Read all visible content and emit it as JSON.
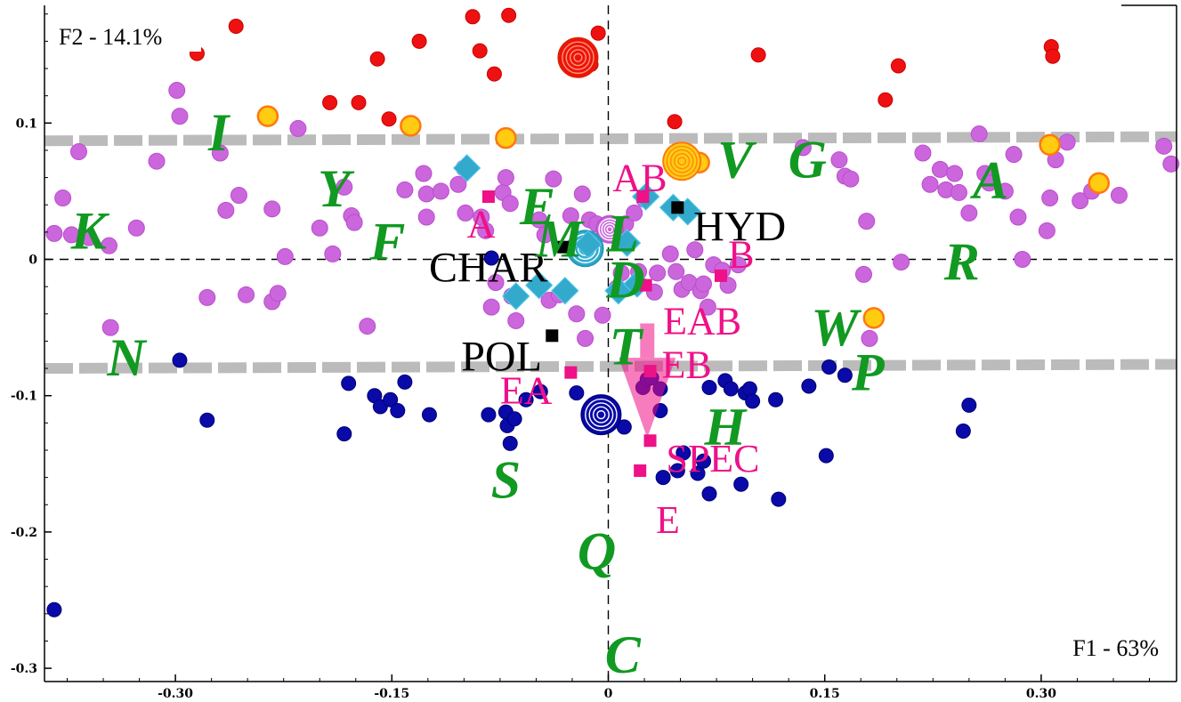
{
  "axes": {
    "x_title": "F1 - 63%",
    "y_title": "F2 - 14.1%",
    "x_ticks": [
      {
        "v": -0.3,
        "label": "-0.30"
      },
      {
        "v": -0.15,
        "label": "-0.15"
      },
      {
        "v": 0,
        "label": "0"
      },
      {
        "v": 0.15,
        "label": "0.15"
      },
      {
        "v": 0.3,
        "label": "0.30"
      }
    ],
    "y_ticks": [
      {
        "v": 0.1,
        "label": "0.1"
      },
      {
        "v": 0,
        "label": "0"
      },
      {
        "v": -0.1,
        "label": "-0.1"
      },
      {
        "v": -0.2,
        "label": "-0.2"
      },
      {
        "v": -0.3,
        "label": "-0.3"
      }
    ]
  },
  "chart_data": {
    "type": "scatter",
    "xlabel": "F1 - 63%",
    "ylabel": "F2 - 14.1%",
    "xlim": [
      -0.395,
      0.395
    ],
    "ylim": [
      -0.315,
      0.19
    ],
    "grid": false,
    "colors": {
      "red": "#ee1111",
      "violet": "#cc66dd",
      "blue": "#0a0aa8",
      "yellow": "#ffcc11",
      "yellow_stroke": "#ff7711",
      "cyan": "#33aacc",
      "pink": "#ee1188",
      "green": "#119922",
      "gray": "#bbbbbb",
      "black": "#000000"
    },
    "reference_lines": [
      {
        "x1": -0.395,
        "y1": 0.087,
        "x2": 0.395,
        "y2": 0.09
      },
      {
        "x1": -0.395,
        "y1": -0.08,
        "x2": 0.395,
        "y2": -0.077
      }
    ],
    "series": [
      {
        "key": "red",
        "points": [
          [
            -0.285,
            0.151
          ],
          [
            -0.258,
            0.171
          ],
          [
            -0.193,
            0.115
          ],
          [
            -0.173,
            0.115
          ],
          [
            -0.16,
            0.147
          ],
          [
            -0.152,
            0.103
          ],
          [
            -0.131,
            0.16
          ],
          [
            -0.094,
            0.178
          ],
          [
            -0.089,
            0.153
          ],
          [
            -0.079,
            0.136
          ],
          [
            -0.069,
            0.179
          ],
          [
            -0.025,
            0.145
          ],
          [
            -0.012,
            0.143
          ],
          [
            -0.007,
            0.166
          ],
          [
            0.046,
            0.101
          ],
          [
            0.104,
            0.15
          ],
          [
            0.192,
            0.117
          ],
          [
            0.201,
            0.142
          ],
          [
            0.307,
            0.156
          ],
          [
            0.308,
            0.149
          ]
        ]
      },
      {
        "key": "violet",
        "points": [
          [
            -0.384,
            0.019
          ],
          [
            -0.378,
            0.045
          ],
          [
            -0.372,
            0.018
          ],
          [
            -0.367,
            0.079
          ],
          [
            -0.36,
            0.016
          ],
          [
            -0.346,
            0.01
          ],
          [
            -0.345,
            -0.05
          ],
          [
            -0.327,
            0.023
          ],
          [
            -0.313,
            0.072
          ],
          [
            -0.299,
            0.124
          ],
          [
            -0.297,
            0.105
          ],
          [
            -0.278,
            -0.028
          ],
          [
            -0.269,
            0.078
          ],
          [
            -0.265,
            0.036
          ],
          [
            -0.256,
            0.047
          ],
          [
            -0.251,
            -0.026
          ],
          [
            -0.233,
            0.037
          ],
          [
            -0.233,
            -0.031
          ],
          [
            -0.229,
            -0.025
          ],
          [
            -0.224,
            0.002
          ],
          [
            -0.215,
            0.096
          ],
          [
            -0.2,
            0.023
          ],
          [
            -0.191,
            0.004
          ],
          [
            -0.183,
            0.053
          ],
          [
            -0.178,
            0.032
          ],
          [
            -0.176,
            0.027
          ],
          [
            -0.167,
            -0.049
          ],
          [
            -0.141,
            0.051
          ],
          [
            -0.128,
            0.063
          ],
          [
            -0.126,
            0.048
          ],
          [
            -0.126,
            0.031
          ],
          [
            -0.116,
            0.05
          ],
          [
            -0.104,
            0.055
          ],
          [
            -0.1,
            0.067
          ],
          [
            -0.099,
            0.034
          ],
          [
            -0.088,
            0.031
          ],
          [
            -0.085,
            0.021
          ],
          [
            -0.081,
            -0.035
          ],
          [
            -0.078,
            -0.017
          ],
          [
            -0.073,
            0.049
          ],
          [
            -0.071,
            0.06
          ],
          [
            -0.068,
            0.041
          ],
          [
            -0.067,
            -0.027
          ],
          [
            -0.064,
            -0.045
          ],
          [
            -0.048,
            0.029
          ],
          [
            -0.044,
            0.018
          ],
          [
            -0.041,
            -0.03
          ],
          [
            -0.038,
            0.059
          ],
          [
            -0.034,
            -0.026
          ],
          [
            -0.026,
            0.032
          ],
          [
            -0.022,
            -0.04
          ],
          [
            -0.018,
            0.048
          ],
          [
            -0.016,
            -0.058
          ],
          [
            -0.013,
            0.029
          ],
          [
            -0.008,
            0.026
          ],
          [
            -0.004,
            -0.041
          ],
          [
            0.006,
            -0.021
          ],
          [
            0.009,
            -0.01
          ],
          [
            0.012,
            0.026
          ],
          [
            0.018,
            0.034
          ],
          [
            0.021,
            -0.009
          ],
          [
            0.025,
            0.044
          ],
          [
            0.032,
            -0.024
          ],
          [
            0.034,
            -0.01
          ],
          [
            0.043,
            0.004
          ],
          [
            0.047,
            -0.009
          ],
          [
            0.051,
            -0.022
          ],
          [
            0.056,
            -0.017
          ],
          [
            0.06,
            0.007
          ],
          [
            0.064,
            -0.023
          ],
          [
            0.066,
            -0.018
          ],
          [
            0.069,
            -0.035
          ],
          [
            0.073,
            -0.004
          ],
          [
            0.079,
            -0.008
          ],
          [
            0.083,
            -0.019
          ],
          [
            0.09,
            -0.004
          ],
          [
            0.135,
            0.082
          ],
          [
            0.16,
            0.073
          ],
          [
            0.164,
            0.061
          ],
          [
            0.168,
            0.059
          ],
          [
            0.177,
            -0.011
          ],
          [
            0.179,
            0.028
          ],
          [
            0.181,
            -0.058
          ],
          [
            0.203,
            -0.002
          ],
          [
            0.218,
            0.078
          ],
          [
            0.223,
            0.055
          ],
          [
            0.23,
            0.066
          ],
          [
            0.234,
            0.051
          ],
          [
            0.24,
            0.063
          ],
          [
            0.243,
            0.049
          ],
          [
            0.25,
            0.034
          ],
          [
            0.257,
            0.092
          ],
          [
            0.261,
            0.063
          ],
          [
            0.264,
            0.056
          ],
          [
            0.275,
            0.05
          ],
          [
            0.281,
            0.077
          ],
          [
            0.284,
            0.031
          ],
          [
            0.287,
            0.0
          ],
          [
            0.304,
            0.021
          ],
          [
            0.306,
            0.045
          ],
          [
            0.31,
            0.073
          ],
          [
            0.318,
            0.086
          ],
          [
            0.327,
            0.043
          ],
          [
            0.335,
            0.05
          ],
          [
            0.354,
            0.047
          ],
          [
            0.385,
            0.083
          ],
          [
            0.39,
            0.07
          ]
        ]
      },
      {
        "key": "blue",
        "points": [
          [
            -0.384,
            -0.257
          ],
          [
            -0.297,
            -0.074
          ],
          [
            -0.278,
            -0.118
          ],
          [
            -0.183,
            -0.128
          ],
          [
            -0.18,
            -0.091
          ],
          [
            -0.162,
            -0.1
          ],
          [
            -0.158,
            -0.108
          ],
          [
            -0.151,
            -0.103
          ],
          [
            -0.146,
            -0.111
          ],
          [
            -0.141,
            -0.09
          ],
          [
            -0.124,
            -0.114
          ],
          [
            -0.083,
            -0.114
          ],
          [
            -0.081,
            0.001
          ],
          [
            -0.071,
            -0.112
          ],
          [
            -0.07,
            -0.122
          ],
          [
            -0.068,
            -0.135
          ],
          [
            -0.065,
            -0.117
          ],
          [
            -0.057,
            -0.103
          ],
          [
            -0.047,
            -0.097
          ],
          [
            -0.022,
            -0.098
          ],
          [
            0.011,
            -0.123
          ],
          [
            0.024,
            -0.094
          ],
          [
            0.027,
            -0.088
          ],
          [
            0.03,
            -0.087
          ],
          [
            0.036,
            -0.095
          ],
          [
            0.036,
            -0.111
          ],
          [
            0.038,
            -0.16
          ],
          [
            0.048,
            -0.155
          ],
          [
            0.052,
            -0.142
          ],
          [
            0.062,
            -0.157
          ],
          [
            0.066,
            -0.148
          ],
          [
            0.07,
            -0.094
          ],
          [
            0.07,
            -0.172
          ],
          [
            0.081,
            -0.089
          ],
          [
            0.085,
            -0.095
          ],
          [
            0.092,
            -0.165
          ],
          [
            0.095,
            -0.098
          ],
          [
            0.098,
            -0.095
          ],
          [
            0.1,
            -0.104
          ],
          [
            0.116,
            -0.103
          ],
          [
            0.118,
            -0.176
          ],
          [
            0.139,
            -0.093
          ],
          [
            0.151,
            -0.144
          ],
          [
            0.153,
            -0.079
          ],
          [
            0.164,
            -0.085
          ],
          [
            0.246,
            -0.126
          ],
          [
            0.25,
            -0.107
          ]
        ]
      },
      {
        "key": "yellow",
        "points": [
          [
            -0.236,
            0.105
          ],
          [
            -0.137,
            0.098
          ],
          [
            -0.071,
            0.089
          ],
          [
            0.063,
            0.071
          ],
          [
            0.184,
            -0.043
          ],
          [
            0.306,
            0.084
          ],
          [
            0.34,
            0.056
          ]
        ]
      }
    ],
    "centroids": [
      {
        "color": "red",
        "x": -0.021,
        "y": 0.148,
        "r": 22
      },
      {
        "color": "yellow",
        "x": 0.051,
        "y": 0.072,
        "r": 21
      },
      {
        "color": "violet",
        "x": 0.001,
        "y": 0.022,
        "r": 15
      },
      {
        "color": "cyan",
        "x": -0.016,
        "y": 0.008,
        "r": 20
      },
      {
        "color": "blue",
        "x": -0.005,
        "y": -0.114,
        "r": 22
      }
    ],
    "diamonds": [
      [
        -0.098,
        0.067
      ],
      [
        -0.064,
        -0.027
      ],
      [
        -0.048,
        -0.019
      ],
      [
        -0.03,
        -0.023
      ],
      [
        -0.014,
        0.011
      ],
      [
        0.007,
        -0.023
      ],
      [
        0.013,
        0.012
      ],
      [
        0.02,
        -0.018
      ],
      [
        0.026,
        0.046
      ],
      [
        0.045,
        0.038
      ],
      [
        0.055,
        0.035
      ]
    ],
    "groups": [
      {
        "label": "HYD",
        "x": 0.048,
        "y": 0.038,
        "text_x": 0.059,
        "text_y": 0.024,
        "anchor": "start"
      },
      {
        "label": "CHAR",
        "x": -0.031,
        "y": 0.009,
        "text_x": -0.042,
        "text_y": -0.006,
        "anchor": "end"
      },
      {
        "label": "POL",
        "x": -0.039,
        "y": -0.056,
        "text_x": -0.046,
        "text_y": -0.071,
        "anchor": "end"
      }
    ],
    "variables": [
      {
        "label": "A",
        "x": -0.083,
        "y": 0.046,
        "text_x": -0.098,
        "text_y": 0.026,
        "anchor": "start"
      },
      {
        "label": "AB",
        "x": 0.024,
        "y": 0.046,
        "text_x": 0.003,
        "text_y": 0.06,
        "anchor": "start"
      },
      {
        "label": "B",
        "x": 0.078,
        "y": -0.012,
        "text_x": 0.083,
        "text_y": 0.004,
        "anchor": "start"
      },
      {
        "label": "EAB",
        "x": 0.026,
        "y": -0.019,
        "text_x": 0.038,
        "text_y": -0.045,
        "anchor": "start"
      },
      {
        "label": "EB",
        "x": 0.029,
        "y": -0.082,
        "text_x": 0.037,
        "text_y": -0.077,
        "anchor": "start"
      },
      {
        "label": "EA",
        "x": -0.026,
        "y": -0.083,
        "text_x": -0.075,
        "text_y": -0.096,
        "anchor": "start"
      },
      {
        "label": "SPEC",
        "x": 0.029,
        "y": -0.133,
        "text_x": 0.04,
        "text_y": -0.146,
        "anchor": "start"
      },
      {
        "label": "E",
        "x": 0.022,
        "y": -0.155,
        "text_x": 0.033,
        "text_y": -0.191,
        "anchor": "start"
      }
    ],
    "amino_acids": [
      {
        "label": "I",
        "x": -0.27,
        "y": 0.093
      },
      {
        "label": "Y",
        "x": -0.19,
        "y": 0.052
      },
      {
        "label": "K",
        "x": -0.36,
        "y": 0.021
      },
      {
        "label": "F",
        "x": -0.153,
        "y": 0.013
      },
      {
        "label": "E",
        "x": -0.049,
        "y": 0.039
      },
      {
        "label": "M",
        "x": -0.034,
        "y": 0.015
      },
      {
        "label": "L",
        "x": 0.01,
        "y": 0.019
      },
      {
        "label": "D",
        "x": 0.012,
        "y": -0.015
      },
      {
        "label": "T",
        "x": 0.012,
        "y": -0.064
      },
      {
        "label": "V",
        "x": 0.088,
        "y": 0.073
      },
      {
        "label": "G",
        "x": 0.138,
        "y": 0.073
      },
      {
        "label": "A",
        "x": 0.265,
        "y": 0.058
      },
      {
        "label": "R",
        "x": 0.245,
        "y": -0.002
      },
      {
        "label": "W",
        "x": 0.157,
        "y": -0.05
      },
      {
        "label": "P",
        "x": 0.18,
        "y": -0.083
      },
      {
        "label": "N",
        "x": -0.334,
        "y": -0.072
      },
      {
        "label": "H",
        "x": 0.081,
        "y": -0.123
      },
      {
        "label": "S",
        "x": -0.071,
        "y": -0.162
      },
      {
        "label": "Q",
        "x": -0.008,
        "y": -0.214
      },
      {
        "label": "C",
        "x": 0.01,
        "y": -0.29
      }
    ],
    "arrow": {
      "from": [
        0.027,
        -0.047
      ],
      "to": [
        0.027,
        -0.131
      ]
    }
  }
}
